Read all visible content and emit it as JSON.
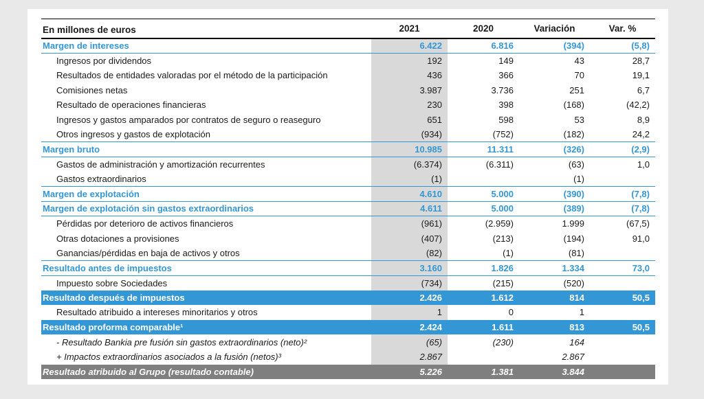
{
  "colors": {
    "accent_blue": "#3397d5",
    "band_gray": "#7f7f7f",
    "column_shade_2021": "#d9d9d9",
    "page_background": "#e9e9e9",
    "text": "#1a1a1a"
  },
  "table": {
    "unit_label": "En millones de euros",
    "columns": [
      "2021",
      "2020",
      "Variación",
      "Var. %"
    ],
    "rows": [
      {
        "label": "Margen de intereses",
        "v2021": "6.422",
        "v2020": "6.816",
        "variacion": "(394)",
        "var_pct": "(5,8)",
        "style": "section"
      },
      {
        "label": "Ingresos por dividendos",
        "v2021": "192",
        "v2020": "149",
        "variacion": "43",
        "var_pct": "28,7",
        "style": "regular"
      },
      {
        "label": "Resultados de entidades valoradas por el método de la participación",
        "v2021": "436",
        "v2020": "366",
        "variacion": "70",
        "var_pct": "19,1",
        "style": "regular"
      },
      {
        "label": "Comisiones netas",
        "v2021": "3.987",
        "v2020": "3.736",
        "variacion": "251",
        "var_pct": "6,7",
        "style": "regular"
      },
      {
        "label": "Resultado de operaciones financieras",
        "v2021": "230",
        "v2020": "398",
        "variacion": "(168)",
        "var_pct": "(42,2)",
        "style": "regular"
      },
      {
        "label": "Ingresos y gastos amparados por contratos de seguro o reaseguro",
        "v2021": "651",
        "v2020": "598",
        "variacion": "53",
        "var_pct": "8,9",
        "style": "regular"
      },
      {
        "label": "Otros ingresos y gastos de explotación",
        "v2021": "(934)",
        "v2020": "(752)",
        "variacion": "(182)",
        "var_pct": "24,2",
        "style": "regular"
      },
      {
        "label": "Margen bruto",
        "v2021": "10.985",
        "v2020": "11.311",
        "variacion": "(326)",
        "var_pct": "(2,9)",
        "style": "section"
      },
      {
        "label": "Gastos de administración y amortización recurrentes",
        "v2021": "(6.374)",
        "v2020": "(6.311)",
        "variacion": "(63)",
        "var_pct": "1,0",
        "style": "regular"
      },
      {
        "label": "Gastos extraordinarios",
        "v2021": "(1)",
        "v2020": "",
        "variacion": "(1)",
        "var_pct": "",
        "style": "regular"
      },
      {
        "label": "Margen de explotación",
        "v2021": "4.610",
        "v2020": "5.000",
        "variacion": "(390)",
        "var_pct": "(7,8)",
        "style": "section"
      },
      {
        "label": "Margen de explotación sin gastos extraordinarios",
        "v2021": "4.611",
        "v2020": "5.000",
        "variacion": "(389)",
        "var_pct": "(7,8)",
        "style": "section"
      },
      {
        "label": "Pérdidas por deterioro de activos financieros",
        "v2021": "(961)",
        "v2020": "(2.959)",
        "variacion": "1.999",
        "var_pct": "(67,5)",
        "style": "regular"
      },
      {
        "label": "Otras dotaciones a provisiones",
        "v2021": "(407)",
        "v2020": "(213)",
        "variacion": "(194)",
        "var_pct": "91,0",
        "style": "regular"
      },
      {
        "label": "Ganancias/pérdidas en baja de activos y otros",
        "v2021": "(82)",
        "v2020": "(1)",
        "variacion": "(81)",
        "var_pct": "",
        "style": "regular"
      },
      {
        "label": "Resultado antes de impuestos",
        "v2021": "3.160",
        "v2020": "1.826",
        "variacion": "1.334",
        "var_pct": "73,0",
        "style": "section"
      },
      {
        "label": "Impuesto sobre Sociedades",
        "v2021": "(734)",
        "v2020": "(215)",
        "variacion": "(520)",
        "var_pct": "",
        "style": "regular"
      },
      {
        "label": "Resultado después de impuestos",
        "v2021": "2.426",
        "v2020": "1.612",
        "variacion": "814",
        "var_pct": "50,5",
        "style": "band-blue"
      },
      {
        "label": "Resultado atribuido a intereses minoritarios y otros",
        "v2021": "1",
        "v2020": "0",
        "variacion": "1",
        "var_pct": "",
        "style": "regular"
      },
      {
        "label": "Resultado proforma comparable¹",
        "v2021": "2.424",
        "v2020": "1.611",
        "variacion": "813",
        "var_pct": "50,5",
        "style": "band-blue"
      },
      {
        "label": "- Resultado Bankia pre fusión sin gastos extraordinarios (neto)²",
        "v2021": "(65)",
        "v2020": "(230)",
        "variacion": "164",
        "var_pct": "",
        "style": "italic"
      },
      {
        "label": "+ Impactos extraordinarios asociados a la fusión (netos)³",
        "v2021": "2.867",
        "v2020": "",
        "variacion": "2.867",
        "var_pct": "",
        "style": "italic"
      },
      {
        "label": "Resultado atribuido al Grupo (resultado contable)",
        "v2021": "5.226",
        "v2020": "1.381",
        "variacion": "3.844",
        "var_pct": "",
        "style": "band-gray"
      }
    ]
  }
}
